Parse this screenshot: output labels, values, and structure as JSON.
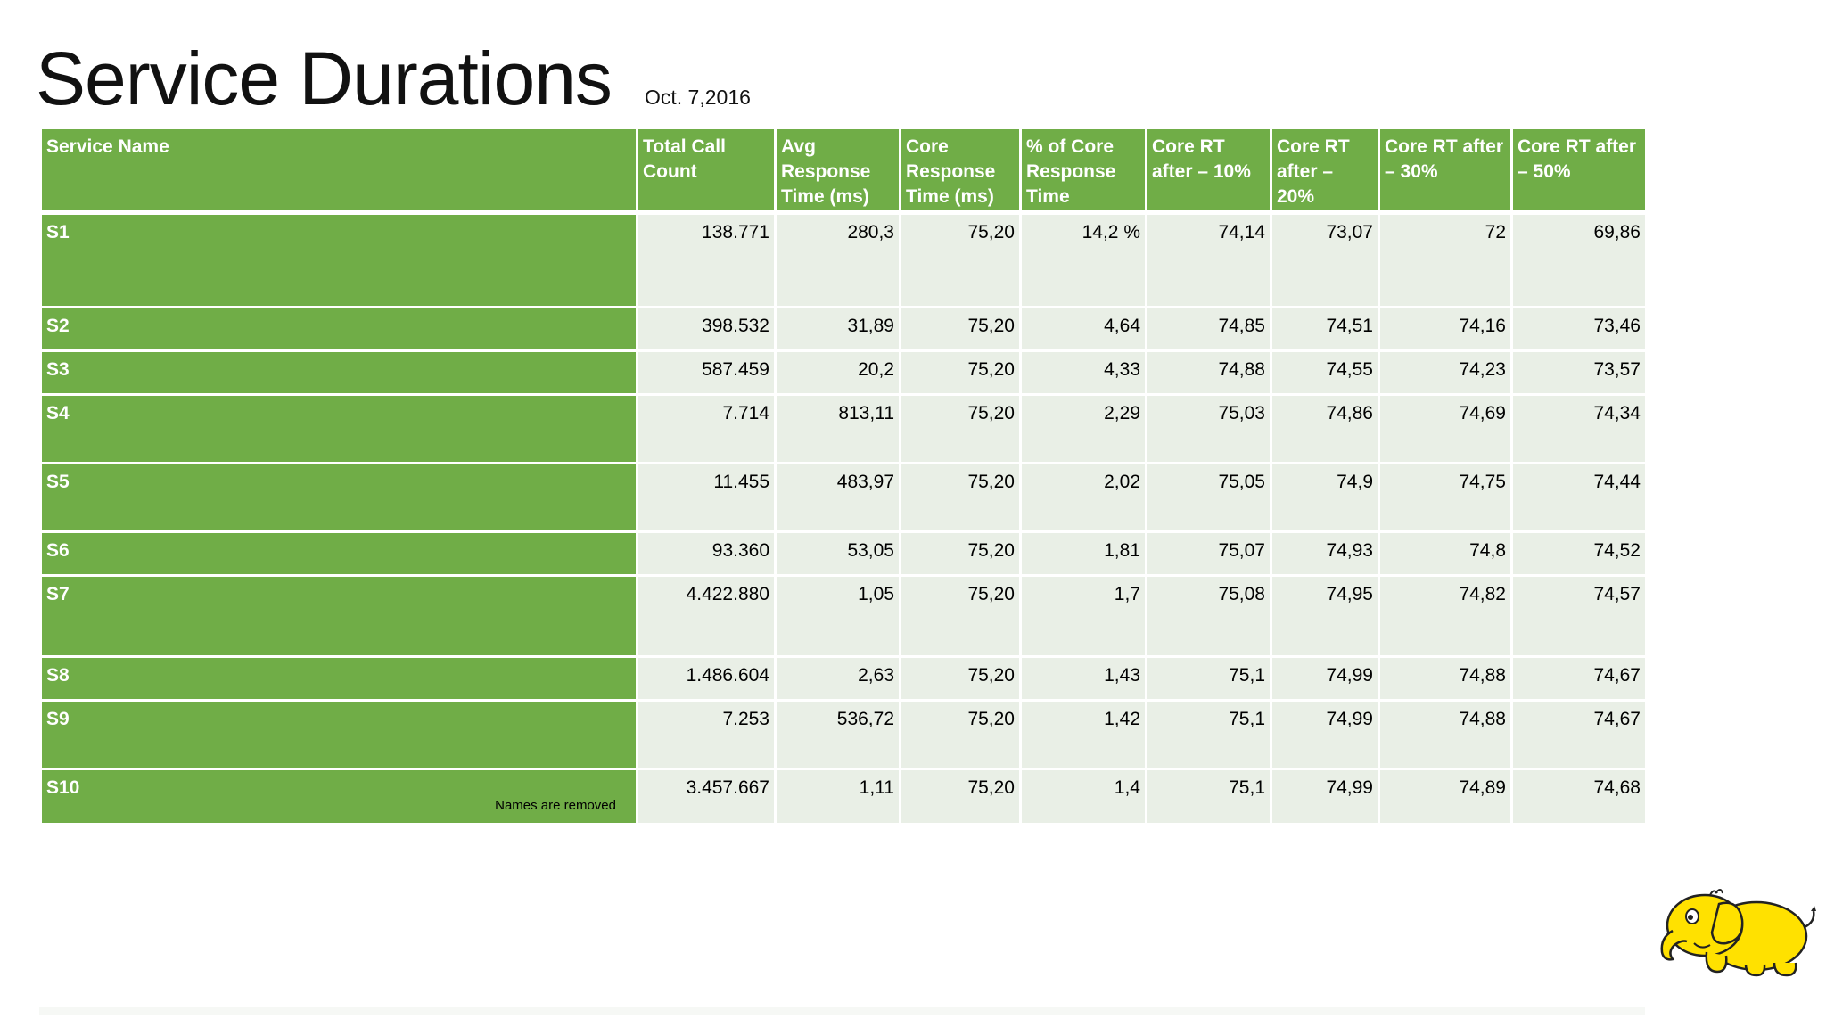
{
  "slide": {
    "title": "Service Durations",
    "date": "Oct. 7,2016",
    "footnote": "Names are removed"
  },
  "table": {
    "headers": [
      "Service Name",
      "Total Call Count",
      "Avg Response Time (ms)",
      "Core Response Time (ms)",
      "% of Core Response Time",
      "Core RT after – 10%",
      "Core RT after – 20%",
      "Core RT after – 30%",
      "Core RT after – 50%"
    ],
    "rows": [
      [
        "S1",
        "138.771",
        "280,3",
        "75,20",
        "14,2 %",
        "74,14",
        "73,07",
        "72",
        "69,86"
      ],
      [
        "S2",
        "398.532",
        "31,89",
        "75,20",
        "4,64",
        "74,85",
        "74,51",
        "74,16",
        "73,46"
      ],
      [
        "S3",
        "587.459",
        "20,2",
        "75,20",
        "4,33",
        "74,88",
        "74,55",
        "74,23",
        "73,57"
      ],
      [
        "S4",
        "7.714",
        "813,11",
        "75,20",
        "2,29",
        "75,03",
        "74,86",
        "74,69",
        "74,34"
      ],
      [
        "S5",
        "11.455",
        "483,97",
        "75,20",
        "2,02",
        "75,05",
        "74,9",
        "74,75",
        "74,44"
      ],
      [
        "S6",
        "93.360",
        "53,05",
        "75,20",
        "1,81",
        "75,07",
        "74,93",
        "74,8",
        "74,52"
      ],
      [
        "S7",
        "4.422.880",
        "1,05",
        "75,20",
        "1,7",
        "75,08",
        "74,95",
        "74,82",
        "74,57"
      ],
      [
        "S8",
        "1.486.604",
        "2,63",
        "75,20",
        "1,43",
        "75,1",
        "74,99",
        "74,88",
        "74,67"
      ],
      [
        "S9",
        "7.253",
        "536,72",
        "75,20",
        "1,42",
        "75,1",
        "74,99",
        "74,88",
        "74,67"
      ],
      [
        "S10",
        "3.457.667",
        "1,11",
        "75,20",
        "1,4",
        "75,1",
        "74,99",
        "74,89",
        "74,68"
      ]
    ]
  },
  "colors": {
    "header_green": "#70ad47",
    "cell_light": "#e9efe6",
    "mascot_yellow": "#ffe100"
  },
  "mascot": {
    "icon": "yellow-elephant-logo-icon"
  }
}
